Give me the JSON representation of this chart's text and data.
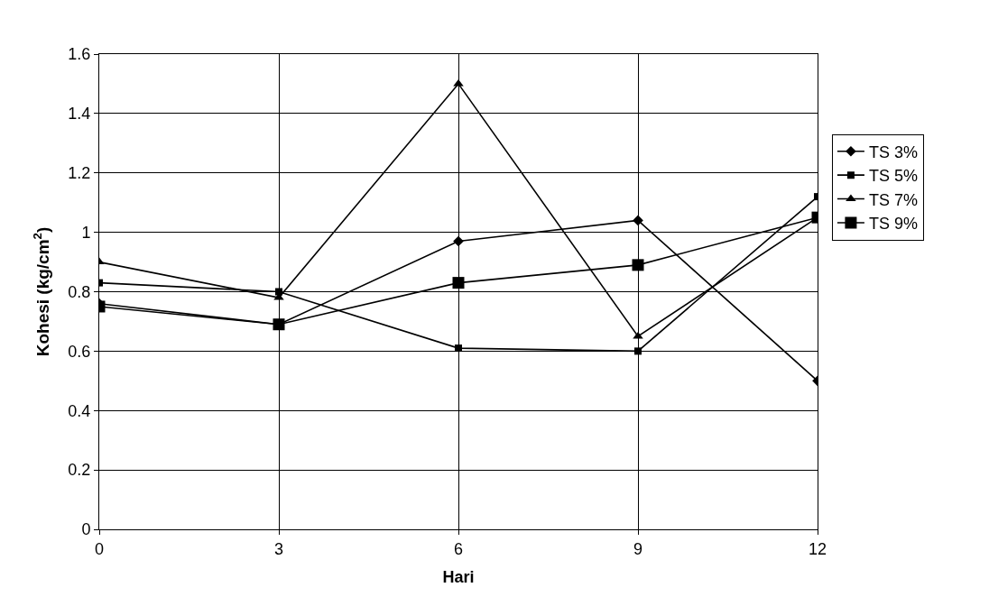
{
  "chart_data": {
    "type": "line",
    "xlabel": "Hari",
    "ylabel": "Kohesi (kg/cm$^{2}$)",
    "x": [
      0,
      3,
      6,
      9,
      12
    ],
    "series": [
      {
        "name": "TS 3%",
        "color": "#000000",
        "marker": "diamond",
        "values": [
          0.76,
          0.69,
          0.97,
          1.04,
          0.5
        ]
      },
      {
        "name": "TS 5%",
        "color": "#000000",
        "marker": "square",
        "values": [
          0.83,
          0.8,
          0.61,
          0.6,
          1.12
        ]
      },
      {
        "name": "TS 7%",
        "color": "#000000",
        "marker": "triangle",
        "values": [
          0.9,
          0.78,
          1.5,
          0.65,
          1.05
        ]
      },
      {
        "name": "TS 9%",
        "color": "#000000",
        "marker": "square",
        "values": [
          0.75,
          0.69,
          0.83,
          0.89,
          1.05
        ]
      }
    ],
    "xlim": [
      0,
      12
    ],
    "xticks": [
      0,
      3,
      6,
      9,
      12
    ],
    "ylim": [
      0,
      1.6
    ],
    "yticks": [
      0,
      0.2,
      0.4,
      0.6,
      0.8,
      1,
      1.2,
      1.4,
      1.6
    ],
    "grid": true,
    "legend": "right",
    "line_style": "solid"
  }
}
